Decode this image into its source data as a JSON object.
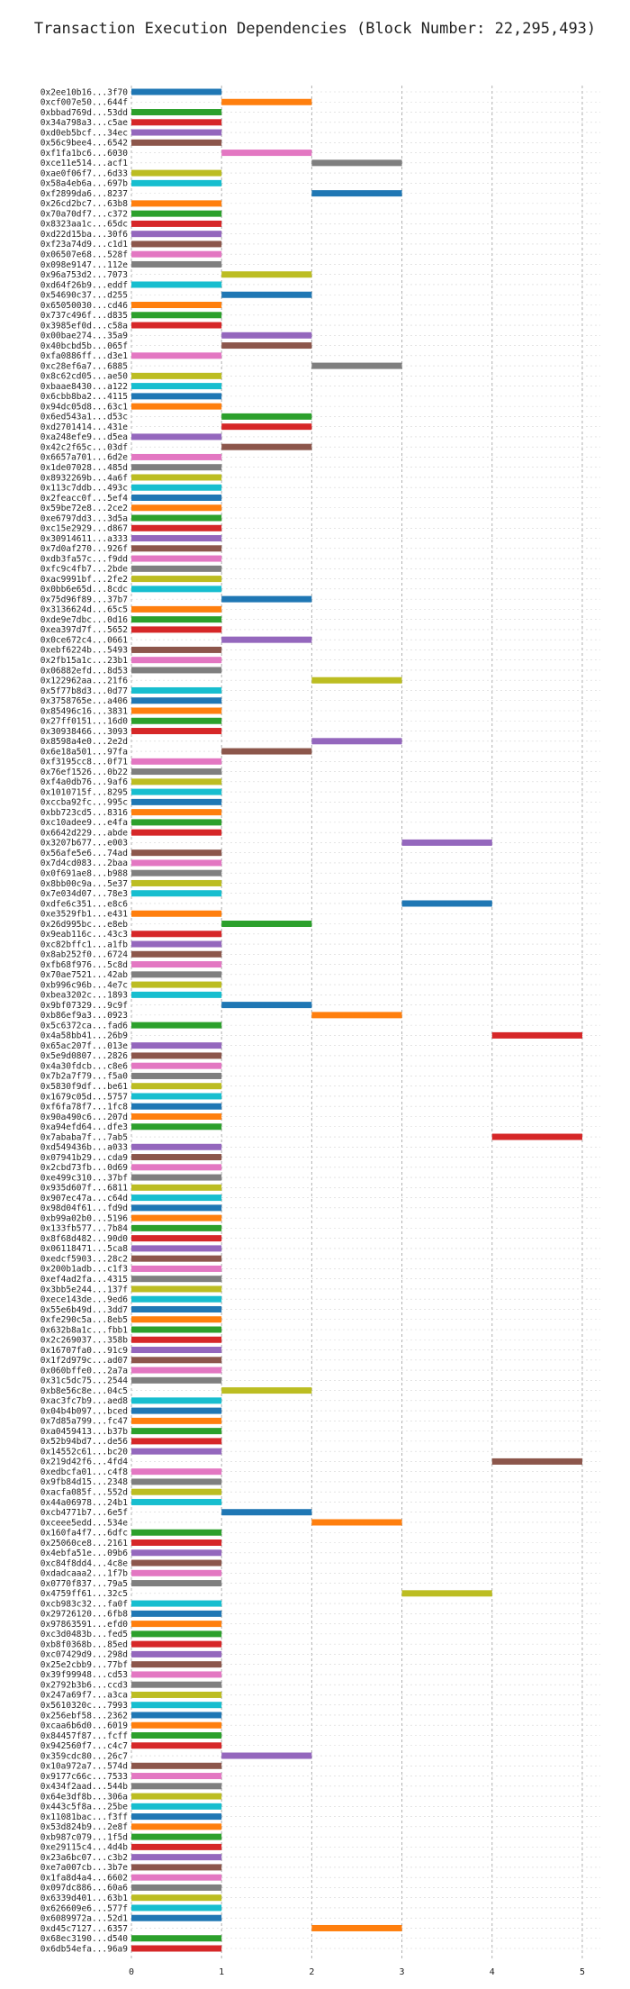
{
  "chart_data": {
    "type": "bar",
    "orientation": "horizontal",
    "title": "Transaction Execution Dependencies (Block Number: 22,295,493)",
    "xlabel": "",
    "ylabel": "",
    "xlim": [
      0,
      5.2
    ],
    "xticks": [
      0,
      1,
      2,
      3,
      4,
      5
    ],
    "grid": "x-dashed",
    "palette": [
      "#1f77b4",
      "#ff7f0e",
      "#2ca02c",
      "#d62728",
      "#9467bd",
      "#8c564b",
      "#e377c2",
      "#7f7f7f",
      "#bcbd22",
      "#17becf"
    ],
    "transactions": [
      {
        "label": "0x2ee10b16...3f70",
        "start": 0
      },
      {
        "label": "0xcf007e50...644f",
        "start": 1
      },
      {
        "label": "0xbbad769d...53dd",
        "start": 0
      },
      {
        "label": "0x34a798a3...c5ae",
        "start": 0
      },
      {
        "label": "0xd0eb5bcf...34ec",
        "start": 0
      },
      {
        "label": "0x56c9bee4...6542",
        "start": 0
      },
      {
        "label": "0xf1fa1bc6...6030",
        "start": 1
      },
      {
        "label": "0xce11e514...acf1",
        "start": 2
      },
      {
        "label": "0xae0f06f7...6d33",
        "start": 0
      },
      {
        "label": "0x58a4eb6a...697b",
        "start": 0
      },
      {
        "label": "0xf2899da6...8237",
        "start": 2
      },
      {
        "label": "0x26cd2bc7...63b8",
        "start": 0
      },
      {
        "label": "0x70a70df7...c372",
        "start": 0
      },
      {
        "label": "0x8323aa1c...65dc",
        "start": 0
      },
      {
        "label": "0xd22d15ba...30f6",
        "start": 0
      },
      {
        "label": "0xf23a74d9...c1d1",
        "start": 0
      },
      {
        "label": "0x06507e68...528f",
        "start": 0
      },
      {
        "label": "0x098e9147...112e",
        "start": 0
      },
      {
        "label": "0x96a753d2...7073",
        "start": 1
      },
      {
        "label": "0xd64f26b9...eddf",
        "start": 0
      },
      {
        "label": "0x54690c37...d255",
        "start": 1
      },
      {
        "label": "0x65050030...cd46",
        "start": 0
      },
      {
        "label": "0x737c496f...d835",
        "start": 0
      },
      {
        "label": "0x3985ef0d...c58a",
        "start": 0
      },
      {
        "label": "0x00bae274...35a9",
        "start": 1
      },
      {
        "label": "0x40bcbd5b...065f",
        "start": 1
      },
      {
        "label": "0xfa0886ff...d3e1",
        "start": 0
      },
      {
        "label": "0xc28ef6a7...6885",
        "start": 2
      },
      {
        "label": "0x8c62cd05...ae50",
        "start": 0
      },
      {
        "label": "0xbaae8430...a122",
        "start": 0
      },
      {
        "label": "0x6cbb8ba2...4115",
        "start": 0
      },
      {
        "label": "0x94dc05d8...63c1",
        "start": 0
      },
      {
        "label": "0x6ed543a1...d53c",
        "start": 1
      },
      {
        "label": "0xd2701414...431e",
        "start": 1
      },
      {
        "label": "0xa248efe9...d5ea",
        "start": 0
      },
      {
        "label": "0x42c2f65c...03df",
        "start": 1
      },
      {
        "label": "0x6657a701...6d2e",
        "start": 0
      },
      {
        "label": "0x1de07028...485d",
        "start": 0
      },
      {
        "label": "0x8932269b...4a6f",
        "start": 0
      },
      {
        "label": "0x113c7ddb...493c",
        "start": 0
      },
      {
        "label": "0x2feacc0f...5ef4",
        "start": 0
      },
      {
        "label": "0x59be72e8...2ce2",
        "start": 0
      },
      {
        "label": "0xe6797dd3...3d5a",
        "start": 0
      },
      {
        "label": "0xc15e2929...d867",
        "start": 0
      },
      {
        "label": "0x30914611...a333",
        "start": 0
      },
      {
        "label": "0x7d0af270...926f",
        "start": 0
      },
      {
        "label": "0xdb3fa57c...f9dd",
        "start": 0
      },
      {
        "label": "0xfc9c4fb7...2bde",
        "start": 0
      },
      {
        "label": "0xac9991bf...2fe2",
        "start": 0
      },
      {
        "label": "0x0bb6e65d...8cdc",
        "start": 0
      },
      {
        "label": "0x75d96f89...37b7",
        "start": 1
      },
      {
        "label": "0x3136624d...65c5",
        "start": 0
      },
      {
        "label": "0xde9e7dbc...0d16",
        "start": 0
      },
      {
        "label": "0xea397d7f...5652",
        "start": 0
      },
      {
        "label": "0x0ce672c4...0661",
        "start": 1
      },
      {
        "label": "0xebf6224b...5493",
        "start": 0
      },
      {
        "label": "0x2fb15a1c...23b1",
        "start": 0
      },
      {
        "label": "0x06882efd...8d53",
        "start": 0
      },
      {
        "label": "0x122962aa...21f6",
        "start": 2
      },
      {
        "label": "0x5f77b8d3...0d77",
        "start": 0
      },
      {
        "label": "0x3758765e...a406",
        "start": 0
      },
      {
        "label": "0x85496c16...3831",
        "start": 0
      },
      {
        "label": "0x27ff0151...16d0",
        "start": 0
      },
      {
        "label": "0x30938466...3093",
        "start": 0
      },
      {
        "label": "0x8598a4e0...2e2d",
        "start": 2
      },
      {
        "label": "0x6e18a501...97fa",
        "start": 1
      },
      {
        "label": "0xf3195cc8...0f71",
        "start": 0
      },
      {
        "label": "0x76ef1526...0b22",
        "start": 0
      },
      {
        "label": "0xf4a0db76...9af6",
        "start": 0
      },
      {
        "label": "0x1010715f...8295",
        "start": 0
      },
      {
        "label": "0xccba92fc...995c",
        "start": 0
      },
      {
        "label": "0xbb723cd5...8316",
        "start": 0
      },
      {
        "label": "0xc10adee9...e4fa",
        "start": 0
      },
      {
        "label": "0x6642d229...abde",
        "start": 0
      },
      {
        "label": "0x3207b677...e003",
        "start": 3
      },
      {
        "label": "0x56afe5e6...74ad",
        "start": 0
      },
      {
        "label": "0x7d4cd083...2baa",
        "start": 0
      },
      {
        "label": "0x0f691ae8...b988",
        "start": 0
      },
      {
        "label": "0x8bb00c9a...5e37",
        "start": 0
      },
      {
        "label": "0x7e034d07...78e3",
        "start": 0
      },
      {
        "label": "0xdfe6c351...e8c6",
        "start": 3
      },
      {
        "label": "0xe3529fb1...e431",
        "start": 0
      },
      {
        "label": "0x26d995bc...e8eb",
        "start": 1
      },
      {
        "label": "0x9eab116c...43c3",
        "start": 0
      },
      {
        "label": "0xc82bffc1...a1fb",
        "start": 0
      },
      {
        "label": "0x8ab252f0...6724",
        "start": 0
      },
      {
        "label": "0xfb68f976...5c8d",
        "start": 0
      },
      {
        "label": "0x70ae7521...42ab",
        "start": 0
      },
      {
        "label": "0xb996c96b...4e7c",
        "start": 0
      },
      {
        "label": "0xbea3202c...1893",
        "start": 0
      },
      {
        "label": "0x9bf07329...9c9f",
        "start": 1
      },
      {
        "label": "0xb86ef9a3...0923",
        "start": 2
      },
      {
        "label": "0x5c6372ca...fad6",
        "start": 0
      },
      {
        "label": "0x4a58bb41...26b9",
        "start": 4
      },
      {
        "label": "0x65ac207f...013e",
        "start": 0
      },
      {
        "label": "0x5e9d0807...2826",
        "start": 0
      },
      {
        "label": "0x4a30fdcb...c8e6",
        "start": 0
      },
      {
        "label": "0x7b2a7f79...f5a0",
        "start": 0
      },
      {
        "label": "0x5830f9df...be61",
        "start": 0
      },
      {
        "label": "0x1679c05d...5757",
        "start": 0
      },
      {
        "label": "0xf6fa78f7...1fc8",
        "start": 0
      },
      {
        "label": "0x90a490c6...207d",
        "start": 0
      },
      {
        "label": "0xa94efd64...dfe3",
        "start": 0
      },
      {
        "label": "0x7ababa7f...7ab5",
        "start": 4
      },
      {
        "label": "0xd549436b...a033",
        "start": 0
      },
      {
        "label": "0x07941b29...cda9",
        "start": 0
      },
      {
        "label": "0x2cbd73fb...0d69",
        "start": 0
      },
      {
        "label": "0xe499c310...37bf",
        "start": 0
      },
      {
        "label": "0x935d607f...6811",
        "start": 0
      },
      {
        "label": "0x907ec47a...c64d",
        "start": 0
      },
      {
        "label": "0x98d04f61...fd9d",
        "start": 0
      },
      {
        "label": "0xb99a02b0...5196",
        "start": 0
      },
      {
        "label": "0x133fb577...7b84",
        "start": 0
      },
      {
        "label": "0x8f68d482...90d0",
        "start": 0
      },
      {
        "label": "0x06118471...5ca8",
        "start": 0
      },
      {
        "label": "0xedcf5903...28c2",
        "start": 0
      },
      {
        "label": "0x200b1adb...c1f3",
        "start": 0
      },
      {
        "label": "0xef4ad2fa...4315",
        "start": 0
      },
      {
        "label": "0x3bb5e244...137f",
        "start": 0
      },
      {
        "label": "0xece143de...9ed6",
        "start": 0
      },
      {
        "label": "0x55e6b49d...3dd7",
        "start": 0
      },
      {
        "label": "0xfe290c5a...8eb5",
        "start": 0
      },
      {
        "label": "0x632b8a1c...fbb1",
        "start": 0
      },
      {
        "label": "0x2c269037...358b",
        "start": 0
      },
      {
        "label": "0x16707fa0...91c9",
        "start": 0
      },
      {
        "label": "0x1f2d979c...ad07",
        "start": 0
      },
      {
        "label": "0x060bffe0...2a7a",
        "start": 0
      },
      {
        "label": "0x31c5dc75...2544",
        "start": 0
      },
      {
        "label": "0xb8e56c8e...04c5",
        "start": 1
      },
      {
        "label": "0xac3fc7b9...aed8",
        "start": 0
      },
      {
        "label": "0x04b4b097...bced",
        "start": 0
      },
      {
        "label": "0x7d85a799...fc47",
        "start": 0
      },
      {
        "label": "0xa0459413...b37b",
        "start": 0
      },
      {
        "label": "0x52b94bd7...de56",
        "start": 0
      },
      {
        "label": "0x14552c61...bc20",
        "start": 0
      },
      {
        "label": "0x219d42f6...4fd4",
        "start": 4
      },
      {
        "label": "0xedbcfa01...c4f8",
        "start": 0
      },
      {
        "label": "0x9fb84d15...2348",
        "start": 0
      },
      {
        "label": "0xacfa085f...552d",
        "start": 0
      },
      {
        "label": "0x44a06978...24b1",
        "start": 0
      },
      {
        "label": "0xcb4771b7...6e5f",
        "start": 1
      },
      {
        "label": "0xceee5edd...534e",
        "start": 2
      },
      {
        "label": "0x160fa4f7...6dfc",
        "start": 0
      },
      {
        "label": "0x25060ce8...2161",
        "start": 0
      },
      {
        "label": "0x4ebfa51e...09b6",
        "start": 0
      },
      {
        "label": "0xc84f8dd4...4c8e",
        "start": 0
      },
      {
        "label": "0xdadcaaa2...1f7b",
        "start": 0
      },
      {
        "label": "0x0770f837...79a5",
        "start": 0
      },
      {
        "label": "0x4759ff61...32c5",
        "start": 3
      },
      {
        "label": "0xcb983c32...fa0f",
        "start": 0
      },
      {
        "label": "0x29726120...6fb8",
        "start": 0
      },
      {
        "label": "0x97863591...efd0",
        "start": 0
      },
      {
        "label": "0xc3d0483b...fed5",
        "start": 0
      },
      {
        "label": "0xb8f0368b...85ed",
        "start": 0
      },
      {
        "label": "0xc07429d9...298d",
        "start": 0
      },
      {
        "label": "0x25e2cbb9...77bf",
        "start": 0
      },
      {
        "label": "0x39f99948...cd53",
        "start": 0
      },
      {
        "label": "0x2792b3b6...ccd3",
        "start": 0
      },
      {
        "label": "0x247a69f7...a3ca",
        "start": 0
      },
      {
        "label": "0x5610320c...7993",
        "start": 0
      },
      {
        "label": "0x256ebf58...2362",
        "start": 0
      },
      {
        "label": "0xcaa6b6d0...6019",
        "start": 0
      },
      {
        "label": "0x84457f87...fcff",
        "start": 0
      },
      {
        "label": "0x942560f7...c4c7",
        "start": 0
      },
      {
        "label": "0x359cdc80...26c7",
        "start": 1
      },
      {
        "label": "0x10a972a7...574d",
        "start": 0
      },
      {
        "label": "0x9177c66c...7533",
        "start": 0
      },
      {
        "label": "0x434f2aad...544b",
        "start": 0
      },
      {
        "label": "0x64e3df8b...306a",
        "start": 0
      },
      {
        "label": "0x443c5f8a...25be",
        "start": 0
      },
      {
        "label": "0x11081bac...f3ff",
        "start": 0
      },
      {
        "label": "0x53d824b9...2e8f",
        "start": 0
      },
      {
        "label": "0xb987c079...1f5d",
        "start": 0
      },
      {
        "label": "0xe29115c4...4d4b",
        "start": 0
      },
      {
        "label": "0x23a6bc07...c3b2",
        "start": 0
      },
      {
        "label": "0xe7a007cb...3b7e",
        "start": 0
      },
      {
        "label": "0x1fa8d4a4...6602",
        "start": 0
      },
      {
        "label": "0x097dc886...60a6",
        "start": 0
      },
      {
        "label": "0x6339d401...63b1",
        "start": 0
      },
      {
        "label": "0x626609e6...577f",
        "start": 0
      },
      {
        "label": "0x6089972a...52d1",
        "start": 0
      },
      {
        "label": "0xd45c7127...6357",
        "start": 2
      },
      {
        "label": "0x68ec3190...d540",
        "start": 0
      },
      {
        "label": "0x6db54efa...96a9",
        "start": 0
      }
    ]
  }
}
